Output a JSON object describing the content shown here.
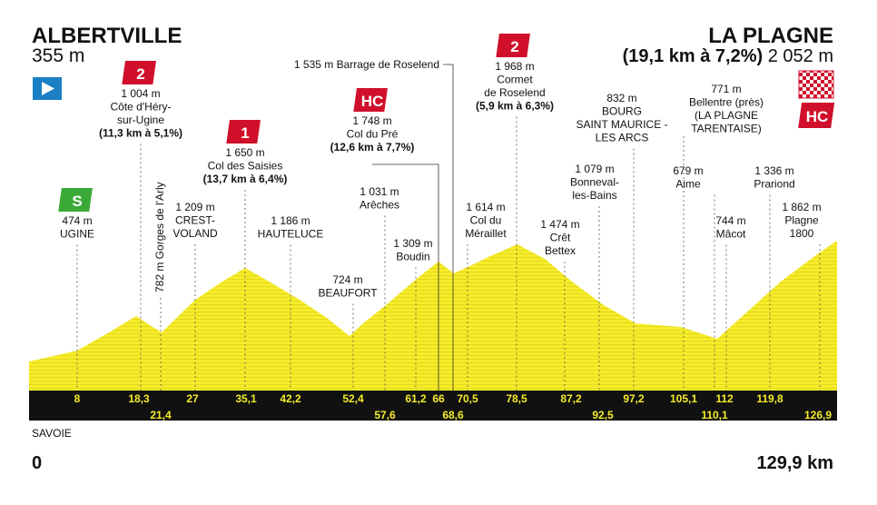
{
  "header": {
    "start_name": "ALBERTVILLE",
    "start_altitude": "355 m",
    "finish_name": "LA PLAGNE",
    "finish_climb": "(19,1 km à 7,2%)",
    "finish_altitude": "2 052 m",
    "finish_badge": "HC"
  },
  "waypoints": [
    {
      "lines": [
        "474 m",
        "UGINE"
      ],
      "badge": "S"
    },
    {
      "lines": [
        "1 004 m",
        "Côte d'Héry-",
        "sur-Ugine"
      ],
      "climb": "(11,3 km à 5,1%)",
      "badge": "2"
    },
    {
      "lines": [
        "782 m Gorges de l'Arly"
      ]
    },
    {
      "lines": [
        "1 209 m",
        "CREST-",
        "VOLAND"
      ]
    },
    {
      "lines": [
        "1 650 m",
        "Col des Saisies"
      ],
      "climb": "(13,7 km à 6,4%)",
      "badge": "1"
    },
    {
      "lines": [
        "1 186 m",
        "HAUTELUCE"
      ]
    },
    {
      "lines": [
        "724 m",
        "BEAUFORT"
      ]
    },
    {
      "lines": [
        "1 031 m",
        "Arêches"
      ]
    },
    {
      "lines": [
        "1 748 m",
        "Col du Pré"
      ],
      "climb": "(12,6 km à 7,7%)",
      "badge": "HC"
    },
    {
      "lines": [
        "1 309 m",
        "Boudin"
      ]
    },
    {
      "lines": [
        "1 535 m Barrage de Roselend"
      ]
    },
    {
      "lines": [
        "1 614 m",
        "Col du",
        "Méraillet"
      ]
    },
    {
      "lines": [
        "1 968 m",
        "Cormet",
        "de Roselend"
      ],
      "climb": "(5,9 km à 6,3%)",
      "badge": "2"
    },
    {
      "lines": [
        "1 474 m",
        "Crêt",
        "Bettex"
      ]
    },
    {
      "lines": [
        "1 079 m",
        "Bonneval-",
        "les-Bains"
      ]
    },
    {
      "lines": [
        "832 m",
        "BOURG",
        "SAINT MAURICE -",
        "LES ARCS"
      ]
    },
    {
      "lines": [
        "771 m",
        "Bellentre (près)",
        "(LA PLAGNE",
        "TARENTAISE)"
      ]
    },
    {
      "lines": [
        "679 m",
        "Aime"
      ]
    },
    {
      "lines": [
        "744 m",
        "Mâcot"
      ]
    },
    {
      "lines": [
        "1 336 m",
        "Prariond"
      ]
    },
    {
      "lines": [
        "1 862 m",
        "Plagne",
        "1800"
      ]
    }
  ],
  "km_markers": [
    "8",
    "18,3",
    "21,4",
    "27",
    "35,1",
    "42,2",
    "52,4",
    "57,6",
    "61,2",
    "66",
    "68,6",
    "70,5",
    "78,5",
    "87,2",
    "92,5",
    "97,2",
    "105,1",
    "110,1",
    "112",
    "119,8",
    "126,9"
  ],
  "footer": {
    "region": "SAVOIE",
    "start_km": "0",
    "total": "129,9 km"
  }
}
